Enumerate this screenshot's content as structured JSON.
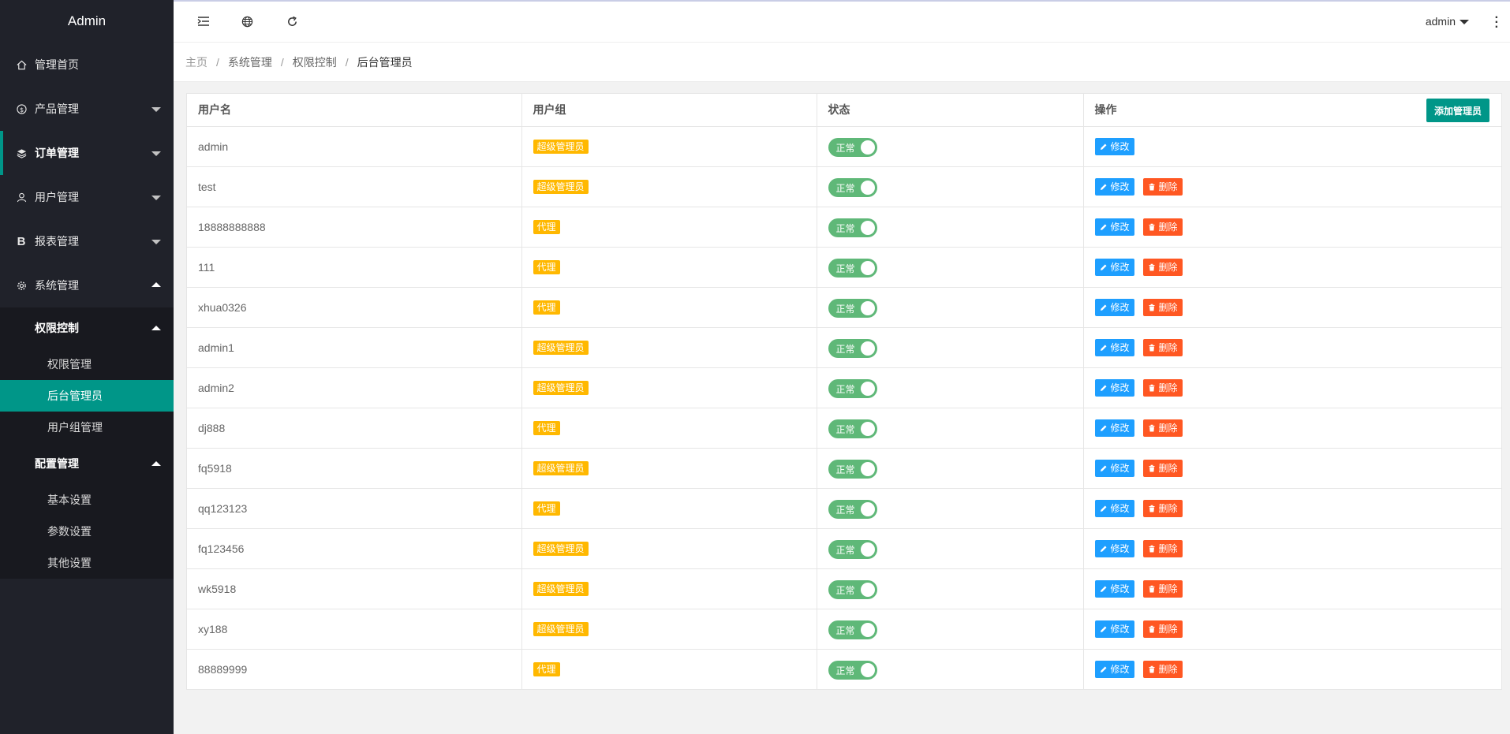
{
  "app": {
    "title": "Admin"
  },
  "sidebar": {
    "menu": [
      {
        "label": "管理首页",
        "icon": "home-icon"
      },
      {
        "label": "产品管理",
        "icon": "dollar-icon"
      },
      {
        "label": "订单管理",
        "icon": "layers-icon"
      },
      {
        "label": "用户管理",
        "icon": "user-icon"
      },
      {
        "label": "报表管理",
        "icon": "bold-b-icon"
      },
      {
        "label": "系统管理",
        "icon": "gear-icon"
      }
    ],
    "groups": [
      {
        "label": "权限控制",
        "items": [
          "权限管理",
          "后台管理员",
          "用户组管理"
        ]
      },
      {
        "label": "配置管理",
        "items": [
          "基本设置",
          "参数设置",
          "其他设置"
        ]
      }
    ]
  },
  "header": {
    "user": "admin"
  },
  "breadcrumb": [
    "主页",
    "系统管理",
    "权限控制",
    "后台管理员"
  ],
  "table": {
    "columns": [
      "用户名",
      "用户组",
      "状态",
      "操作"
    ],
    "add_button": "添加管理员",
    "edit_label": "修改",
    "delete_label": "删除",
    "rows": [
      {
        "username": "admin",
        "group": "超级管理员",
        "status": "正常",
        "deletable": false
      },
      {
        "username": "test",
        "group": "超级管理员",
        "status": "正常",
        "deletable": true
      },
      {
        "username": "18888888888",
        "group": "代理",
        "status": "正常",
        "deletable": true
      },
      {
        "username": "111",
        "group": "代理",
        "status": "正常",
        "deletable": true
      },
      {
        "username": "xhua0326",
        "group": "代理",
        "status": "正常",
        "deletable": true
      },
      {
        "username": "admin1",
        "group": "超级管理员",
        "status": "正常",
        "deletable": true
      },
      {
        "username": "admin2",
        "group": "超级管理员",
        "status": "正常",
        "deletable": true
      },
      {
        "username": "dj888",
        "group": "代理",
        "status": "正常",
        "deletable": true
      },
      {
        "username": "fq5918",
        "group": "超级管理员",
        "status": "正常",
        "deletable": true
      },
      {
        "username": "qq123123",
        "group": "代理",
        "status": "正常",
        "deletable": true
      },
      {
        "username": "fq123456",
        "group": "超级管理员",
        "status": "正常",
        "deletable": true
      },
      {
        "username": "wk5918",
        "group": "超级管理员",
        "status": "正常",
        "deletable": true
      },
      {
        "username": "xy188",
        "group": "超级管理员",
        "status": "正常",
        "deletable": true
      },
      {
        "username": "88889999",
        "group": "代理",
        "status": "正常",
        "deletable": true
      }
    ]
  }
}
